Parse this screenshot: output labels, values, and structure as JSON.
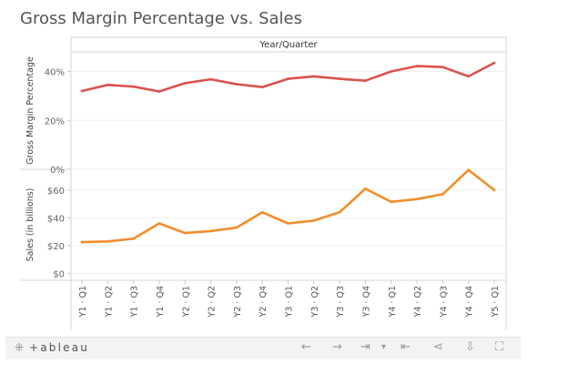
{
  "title": "Gross Margin Percentage vs. Sales",
  "chart_data": {
    "type": "line",
    "header": "Year/Quarter",
    "categories": [
      "Y1 · Q1",
      "Y1 · Q2",
      "Y1 · Q3",
      "Y1 · Q4",
      "Y2 · Q1",
      "Y2 · Q2",
      "Y2 · Q3",
      "Y2 · Q4",
      "Y3 · Q1",
      "Y3 · Q2",
      "Y3 · Q3",
      "Y3 · Q4",
      "Y4 · Q1",
      "Y4 · Q2",
      "Y4 · Q3",
      "Y4 · Q4",
      "Y5 · Q1"
    ],
    "panels": [
      {
        "name": "Gross Margin Percentage",
        "ylabel": "Gross Margin Percentage",
        "color": "#d9534f",
        "ylim": [
          0,
          48
        ],
        "ticks": [
          0,
          20,
          40
        ],
        "tick_labels": [
          "0%",
          "20%",
          "40%"
        ],
        "values": [
          32,
          34.5,
          33.8,
          31.8,
          35.2,
          36.8,
          34.8,
          33.6,
          37,
          38,
          37,
          36.2,
          40,
          42.2,
          41.8,
          38,
          43.5
        ]
      },
      {
        "name": "Sales",
        "ylabel": "Sales (in billions)",
        "color": "#f28e2b",
        "ylim": [
          -5,
          75
        ],
        "ticks": [
          0,
          20,
          40,
          60
        ],
        "tick_labels": [
          "$0",
          "$20",
          "$40",
          "$60"
        ],
        "values": [
          22.5,
          23,
          25,
          36,
          29,
          30.5,
          33,
          44,
          36,
          38,
          44,
          61,
          51.5,
          53.5,
          57,
          74.5,
          60
        ]
      }
    ]
  },
  "toolbar": {
    "logo_text": "+ableau",
    "logo_icon": "tableau-logo-icon",
    "icons": {
      "undo": "←",
      "redo": "→",
      "revert": "⇥",
      "dropdown": "▾",
      "reset": "⇤",
      "share": "⋖",
      "download": "⇩",
      "fullscreen": "⛶"
    }
  }
}
